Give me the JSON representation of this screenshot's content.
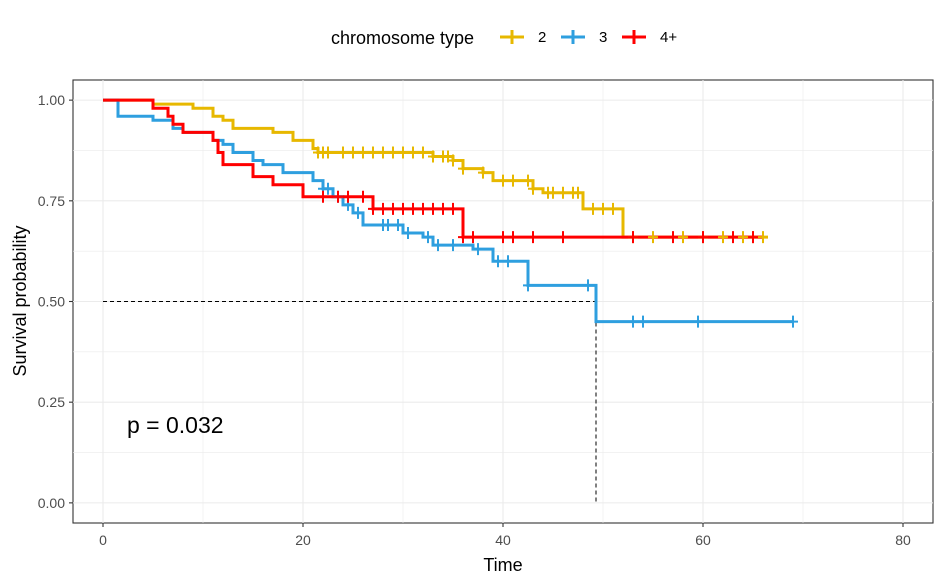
{
  "chart_data": {
    "type": "line",
    "subtype": "kaplan-meier",
    "xlabel": "Time",
    "ylabel": "Survival probability",
    "xlim": [
      -3,
      83
    ],
    "ylim": [
      -0.05,
      1.05
    ],
    "x_ticks": [
      0,
      20,
      40,
      60,
      80
    ],
    "y_ticks": [
      0.0,
      0.25,
      0.5,
      0.75,
      1.0
    ],
    "x_tick_labels": [
      "0",
      "20",
      "40",
      "60",
      "80"
    ],
    "y_tick_labels": [
      "0.00",
      "0.25",
      "0.50",
      "0.75",
      "1.00"
    ],
    "grid": true,
    "legend": {
      "title": "chromosome type",
      "position": "top"
    },
    "annotation": "p = 0.032",
    "median_line": {
      "y": 0.5,
      "x": 49.3
    },
    "series": [
      {
        "name": "2",
        "color": "#E7B800",
        "steps": [
          [
            0,
            1.0
          ],
          [
            5,
            0.99
          ],
          [
            9,
            0.98
          ],
          [
            11,
            0.96
          ],
          [
            12,
            0.95
          ],
          [
            13,
            0.93
          ],
          [
            17,
            0.92
          ],
          [
            19,
            0.9
          ],
          [
            21,
            0.88
          ],
          [
            21.5,
            0.87
          ],
          [
            33,
            0.86
          ],
          [
            35,
            0.85
          ],
          [
            36,
            0.83
          ],
          [
            38,
            0.82
          ],
          [
            39,
            0.8
          ],
          [
            43,
            0.78
          ],
          [
            44,
            0.77
          ],
          [
            48,
            0.73
          ],
          [
            52,
            0.66
          ],
          [
            66.5,
            0.66
          ]
        ],
        "censor_x": [
          21.5,
          22,
          22.5,
          24,
          25,
          26,
          27,
          28,
          29,
          30,
          31,
          32,
          33,
          34,
          34.5,
          35,
          36,
          38,
          40,
          41,
          42.5,
          43,
          44.5,
          45,
          46,
          47,
          47.5,
          49,
          50,
          51,
          53,
          55,
          58,
          60,
          62,
          64,
          65,
          66
        ]
      },
      {
        "name": "3",
        "color": "#2E9FDF",
        "steps": [
          [
            0,
            1.0
          ],
          [
            1.5,
            0.96
          ],
          [
            5,
            0.95
          ],
          [
            7,
            0.93
          ],
          [
            8,
            0.92
          ],
          [
            11,
            0.9
          ],
          [
            12,
            0.89
          ],
          [
            13,
            0.87
          ],
          [
            15,
            0.85
          ],
          [
            16,
            0.84
          ],
          [
            18,
            0.82
          ],
          [
            21,
            0.8
          ],
          [
            22,
            0.78
          ],
          [
            23,
            0.76
          ],
          [
            24,
            0.74
          ],
          [
            25,
            0.72
          ],
          [
            26,
            0.69
          ],
          [
            30,
            0.67
          ],
          [
            32,
            0.66
          ],
          [
            33,
            0.64
          ],
          [
            37,
            0.63
          ],
          [
            39,
            0.6
          ],
          [
            42.5,
            0.54
          ],
          [
            49.3,
            0.45
          ],
          [
            69,
            0.45
          ]
        ],
        "censor_x": [
          22,
          22.5,
          23.5,
          24.5,
          25.5,
          28,
          28.5,
          29.5,
          30.5,
          32.5,
          33.5,
          35,
          37.5,
          39.5,
          40.5,
          42.5,
          48.5,
          53,
          54,
          59.5,
          69
        ]
      },
      {
        "name": "4+",
        "color": "#FF0000",
        "steps": [
          [
            0,
            1.0
          ],
          [
            5,
            0.98
          ],
          [
            6.5,
            0.96
          ],
          [
            7,
            0.94
          ],
          [
            8,
            0.92
          ],
          [
            11,
            0.9
          ],
          [
            11.5,
            0.87
          ],
          [
            12,
            0.84
          ],
          [
            15,
            0.81
          ],
          [
            17,
            0.79
          ],
          [
            20,
            0.76
          ],
          [
            27,
            0.73
          ],
          [
            36,
            0.66
          ],
          [
            66,
            0.66
          ]
        ],
        "censor_x": [
          22,
          23.5,
          24.5,
          26,
          27,
          28,
          29,
          30,
          31,
          32,
          33,
          34,
          35,
          36,
          37,
          40,
          41,
          43,
          46,
          53,
          57,
          60,
          63,
          65
        ]
      }
    ]
  }
}
